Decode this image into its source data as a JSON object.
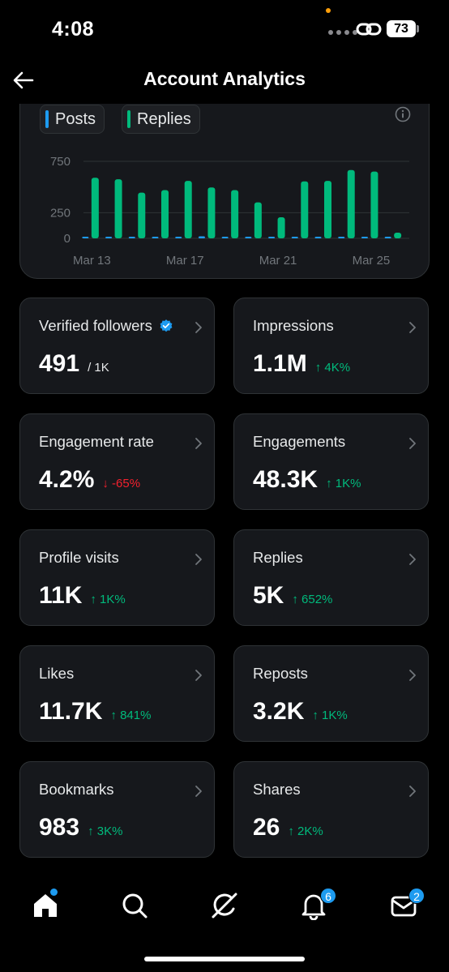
{
  "status_bar": {
    "time": "4:08",
    "battery": "73"
  },
  "header": {
    "title": "Account Analytics"
  },
  "chart": {
    "legend": [
      {
        "label": "Posts",
        "color": "#1d9bf0"
      },
      {
        "label": "Replies",
        "color": "#00ba7c"
      }
    ]
  },
  "chart_data": {
    "type": "bar",
    "categories": [
      "Mar 13",
      "Mar 14",
      "Mar 15",
      "Mar 16",
      "Mar 17",
      "Mar 18",
      "Mar 19",
      "Mar 20",
      "Mar 21",
      "Mar 22",
      "Mar 23",
      "Mar 24",
      "Mar 25",
      "Mar 26"
    ],
    "x_tick_labels": [
      "Mar 13",
      "Mar 17",
      "Mar 21",
      "Mar 25"
    ],
    "y_ticks": [
      0,
      250,
      750
    ],
    "ylim": [
      0,
      800
    ],
    "series": [
      {
        "name": "Posts",
        "color": "#1d9bf0",
        "values": [
          4,
          8,
          6,
          10,
          14,
          20,
          12,
          14,
          4,
          2,
          8,
          12,
          8,
          12
        ]
      },
      {
        "name": "Replies",
        "color": "#00ba7c",
        "values": [
          590,
          575,
          445,
          470,
          560,
          495,
          470,
          350,
          205,
          555,
          560,
          665,
          650,
          55
        ]
      }
    ],
    "legend_position": "top-left",
    "grid": true
  },
  "metrics": [
    {
      "label": "Verified followers",
      "value": "491",
      "sub": "/ 1K",
      "change": "",
      "direction": "",
      "verified": true
    },
    {
      "label": "Impressions",
      "value": "1.1M",
      "sub": "",
      "change": "↑ 4K%",
      "direction": "up"
    },
    {
      "label": "Engagement rate",
      "value": "4.2%",
      "sub": "",
      "change": "↓ -65%",
      "direction": "down"
    },
    {
      "label": "Engagements",
      "value": "48.3K",
      "sub": "",
      "change": "↑ 1K%",
      "direction": "up"
    },
    {
      "label": "Profile visits",
      "value": "11K",
      "sub": "",
      "change": "↑ 1K%",
      "direction": "up"
    },
    {
      "label": "Replies",
      "value": "5K",
      "sub": "",
      "change": "↑ 652%",
      "direction": "up"
    },
    {
      "label": "Likes",
      "value": "11.7K",
      "sub": "",
      "change": "↑ 841%",
      "direction": "up"
    },
    {
      "label": "Reposts",
      "value": "3.2K",
      "sub": "",
      "change": "↑ 1K%",
      "direction": "up"
    },
    {
      "label": "Bookmarks",
      "value": "983",
      "sub": "",
      "change": "↑ 3K%",
      "direction": "up"
    },
    {
      "label": "Shares",
      "value": "26",
      "sub": "",
      "change": "↑ 2K%",
      "direction": "up"
    }
  ],
  "bottom_nav": {
    "items": [
      {
        "icon": "home-icon",
        "badge": ""
      },
      {
        "icon": "search-icon",
        "badge": ""
      },
      {
        "icon": "grok-icon",
        "badge": ""
      },
      {
        "icon": "bell-icon",
        "badge": "6"
      },
      {
        "icon": "mail-icon",
        "badge": "2"
      }
    ]
  }
}
